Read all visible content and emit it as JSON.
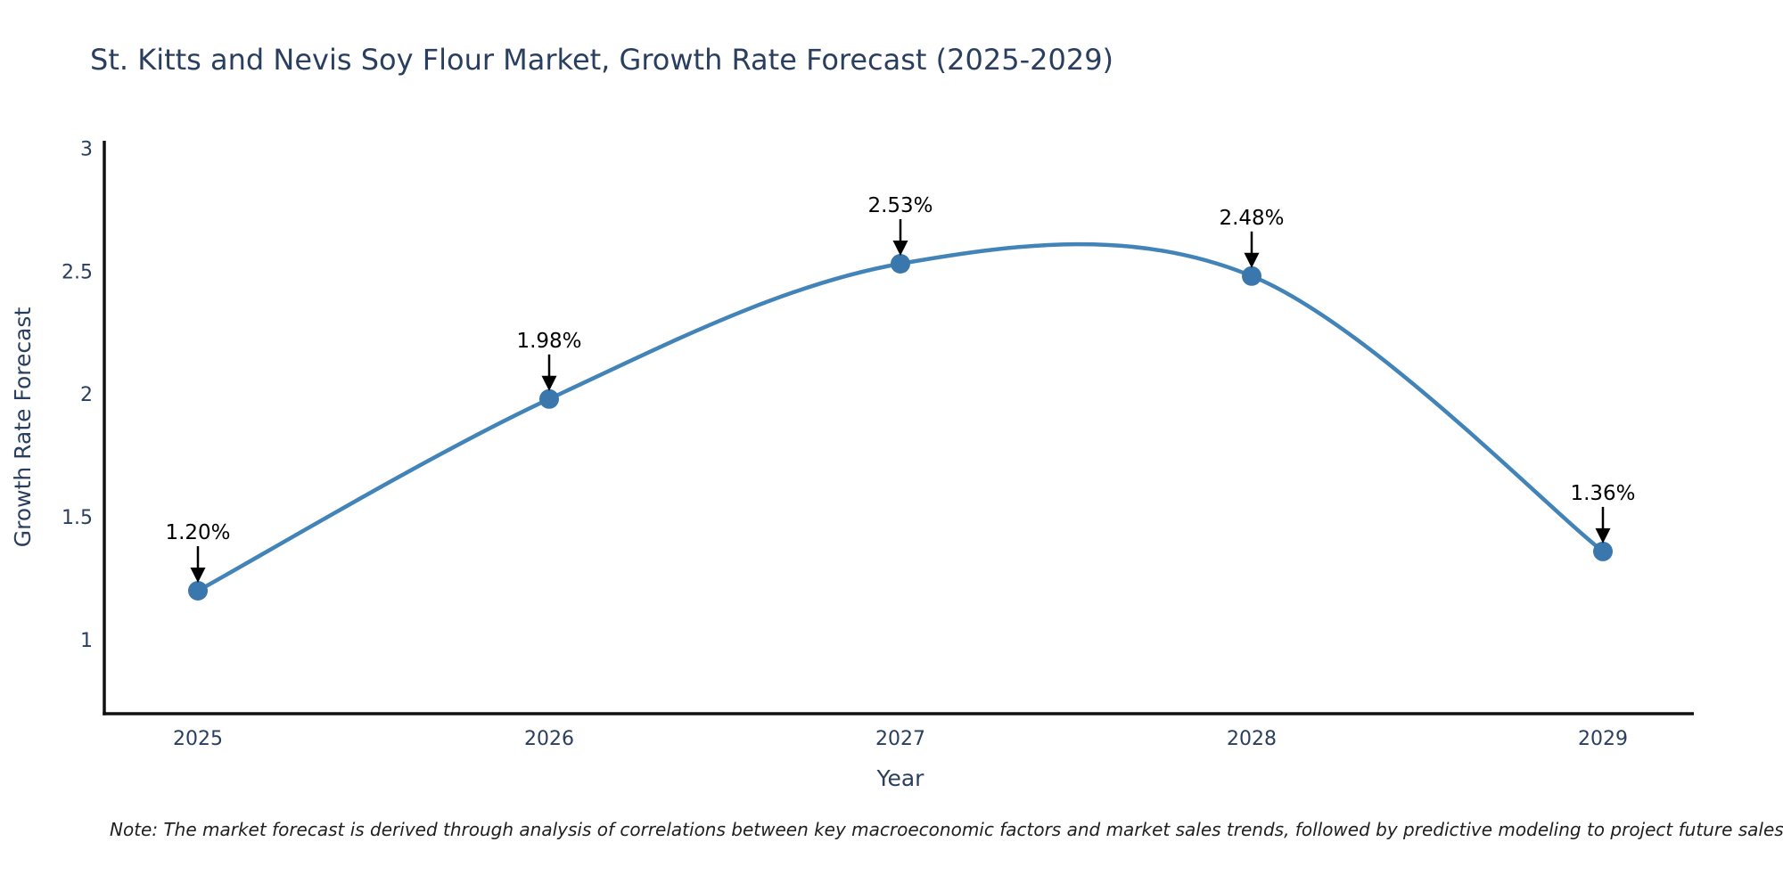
{
  "page": {
    "title": "St. Kitts and Nevis Soy Flour Market, Growth Rate Forecast (2025-2029)",
    "footnote": "Note: The market forecast is derived through analysis of correlations between key macroeconomic factors and market sales trends, followed by predictive modeling to project future sales"
  },
  "chart_data": {
    "type": "line",
    "title": "St. Kitts and Nevis Soy Flour Market, Growth Rate Forecast (2025-2029)",
    "categories": [
      "2025",
      "2026",
      "2027",
      "2028",
      "2029"
    ],
    "values": [
      1.2,
      1.98,
      2.53,
      2.48,
      1.36
    ],
    "point_labels": [
      "1.20%",
      "1.98%",
      "2.53%",
      "2.48%",
      "1.36%"
    ],
    "xlabel": "Year",
    "ylabel": "Growth Rate Forecast",
    "ylim": [
      0.7,
      3.03
    ],
    "yticks": [
      1,
      1.5,
      2,
      2.5,
      3
    ],
    "ytick_labels": [
      "1",
      "1.5",
      "2",
      "2.5",
      "3"
    ],
    "line_shape": "spline",
    "grid": false,
    "legend": false,
    "colors": {
      "line": "#4283b8",
      "marker": "#3a77ad",
      "axis": "#111111",
      "text": "#2a3f5f",
      "annotation": "#000000"
    }
  }
}
